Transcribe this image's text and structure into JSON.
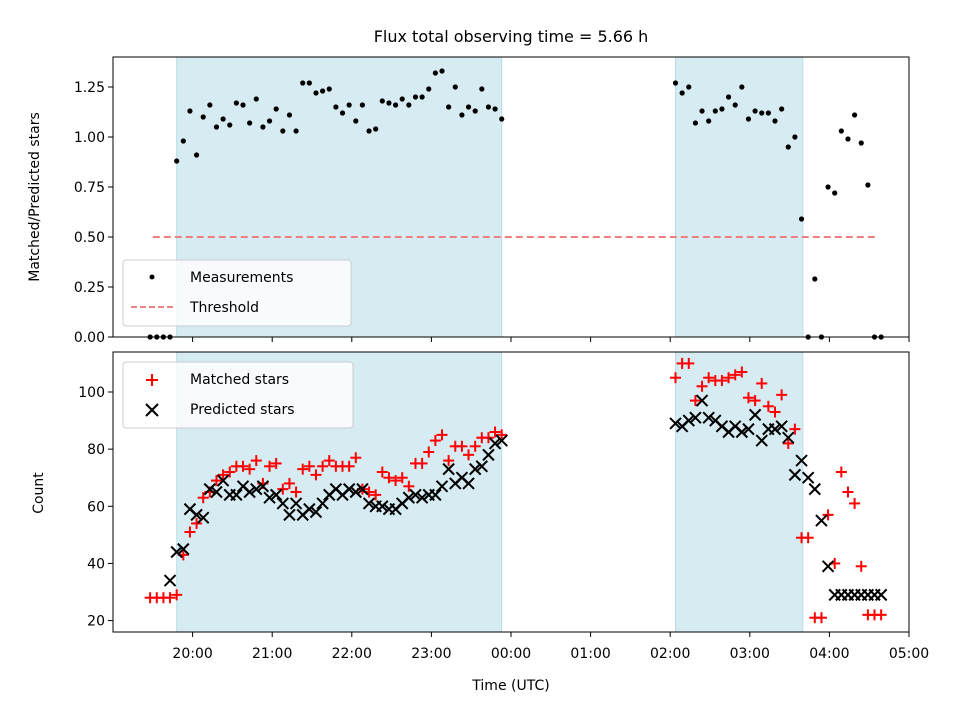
{
  "figure_title": "Flux total observing time = 5.66 h",
  "chart_data": [
    {
      "type": "scatter",
      "panel": "top",
      "title": "Flux total observing time = 5.66 h",
      "xlabel": "",
      "ylabel": "Matched/Predicted stars",
      "xlim": [
        "19:00",
        "05:00"
      ],
      "ylim": [
        0.0,
        1.4
      ],
      "yticks": [
        "0.00",
        "0.25",
        "0.50",
        "0.75",
        "1.00",
        "1.25"
      ],
      "yticks_values": [
        0,
        0.25,
        0.5,
        0.75,
        1.0,
        1.25
      ],
      "grid": false,
      "legend_position": "lower-left",
      "shaded_intervals": [
        [
          "19:48",
          "23:53"
        ],
        [
          "02:04",
          "03:40"
        ]
      ],
      "shade_color": "#add8e6",
      "series": [
        {
          "name": "Measurements",
          "marker": "dot",
          "color": "#000000",
          "x": [
            "19:28",
            "19:33",
            "19:38",
            "19:43",
            "19:48",
            "19:53",
            "19:58",
            "20:03",
            "20:08",
            "20:13",
            "20:18",
            "20:23",
            "20:28",
            "20:33",
            "20:38",
            "20:43",
            "20:48",
            "20:53",
            "20:58",
            "21:03",
            "21:08",
            "21:13",
            "21:18",
            "21:23",
            "21:28",
            "21:33",
            "21:38",
            "21:43",
            "21:48",
            "21:53",
            "21:58",
            "22:03",
            "22:08",
            "22:13",
            "22:18",
            "22:23",
            "22:28",
            "22:33",
            "22:38",
            "22:43",
            "22:48",
            "22:53",
            "22:58",
            "23:03",
            "23:08",
            "23:13",
            "23:18",
            "23:23",
            "23:28",
            "23:33",
            "23:38",
            "23:43",
            "23:48",
            "23:53",
            "02:04",
            "02:09",
            "02:14",
            "02:19",
            "02:24",
            "02:29",
            "02:34",
            "02:39",
            "02:44",
            "02:49",
            "02:54",
            "02:59",
            "03:04",
            "03:09",
            "03:14",
            "03:19",
            "03:24",
            "03:29",
            "03:34",
            "03:39",
            "03:44",
            "03:49",
            "03:54",
            "03:59",
            "04:04",
            "04:09",
            "04:14",
            "04:19",
            "04:24",
            "04:29",
            "04:34",
            "04:39"
          ],
          "y": [
            0.0,
            0.0,
            0.0,
            0.0,
            0.88,
            0.98,
            1.13,
            0.91,
            1.1,
            1.16,
            1.05,
            1.09,
            1.06,
            1.17,
            1.16,
            1.07,
            1.19,
            1.05,
            1.08,
            1.14,
            1.03,
            1.11,
            1.03,
            1.27,
            1.27,
            1.22,
            1.23,
            1.24,
            1.15,
            1.12,
            1.16,
            1.08,
            1.16,
            1.03,
            1.04,
            1.18,
            1.17,
            1.16,
            1.19,
            1.16,
            1.2,
            1.2,
            1.24,
            1.32,
            1.33,
            1.15,
            1.25,
            1.11,
            1.15,
            1.13,
            1.24,
            1.15,
            1.14,
            1.09,
            1.27,
            1.22,
            1.25,
            1.07,
            1.13,
            1.08,
            1.13,
            1.14,
            1.2,
            1.16,
            1.25,
            1.09,
            1.13,
            1.12,
            1.12,
            1.08,
            1.14,
            0.95,
            1.0,
            0.59,
            0.0,
            0.29,
            0.0,
            0.75,
            0.72,
            1.03,
            0.99,
            1.11,
            0.97,
            0.76,
            0.0,
            0.0
          ]
        },
        {
          "name": "Threshold",
          "style": "dashed",
          "color": "#f08080",
          "x": [
            "19:30",
            "04:35"
          ],
          "y": [
            0.5,
            0.5
          ]
        }
      ]
    },
    {
      "type": "scatter",
      "panel": "bottom",
      "xlabel": "Time (UTC)",
      "ylabel": "Count",
      "xlim": [
        "19:00",
        "05:00"
      ],
      "ylim": [
        16,
        114
      ],
      "xticks": [
        "20:00",
        "21:00",
        "22:00",
        "23:00",
        "00:00",
        "01:00",
        "02:00",
        "03:00",
        "04:00",
        "05:00"
      ],
      "yticks": [
        "20",
        "40",
        "60",
        "80",
        "100"
      ],
      "yticks_values": [
        20,
        40,
        60,
        80,
        100
      ],
      "grid": false,
      "legend_position": "upper-left",
      "shaded_intervals": [
        [
          "19:48",
          "23:53"
        ],
        [
          "02:04",
          "03:40"
        ]
      ],
      "shade_color": "#add8e6",
      "series": [
        {
          "name": "Matched stars",
          "marker": "plus",
          "color": "#ff0000",
          "x": [
            "19:28",
            "19:33",
            "19:38",
            "19:43",
            "19:48",
            "19:53",
            "19:58",
            "20:03",
            "20:08",
            "20:13",
            "20:18",
            "20:23",
            "20:28",
            "20:33",
            "20:38",
            "20:43",
            "20:48",
            "20:53",
            "20:58",
            "21:03",
            "21:08",
            "21:13",
            "21:18",
            "21:23",
            "21:28",
            "21:33",
            "21:38",
            "21:43",
            "21:48",
            "21:53",
            "21:58",
            "22:03",
            "22:08",
            "22:13",
            "22:18",
            "22:23",
            "22:28",
            "22:33",
            "22:38",
            "22:43",
            "22:48",
            "22:53",
            "22:58",
            "23:03",
            "23:08",
            "23:13",
            "23:18",
            "23:23",
            "23:28",
            "23:33",
            "23:38",
            "23:43",
            "23:48",
            "23:53",
            "02:04",
            "02:09",
            "02:14",
            "02:19",
            "02:24",
            "02:29",
            "02:34",
            "02:39",
            "02:44",
            "02:49",
            "02:54",
            "02:59",
            "03:04",
            "03:09",
            "03:14",
            "03:19",
            "03:24",
            "03:29",
            "03:34",
            "03:39",
            "03:44",
            "03:49",
            "03:54",
            "03:59",
            "04:04",
            "04:09",
            "04:14",
            "04:19",
            "04:24",
            "04:29",
            "04:34",
            "04:39"
          ],
          "y": [
            28,
            28,
            28,
            28,
            29,
            43,
            51,
            54,
            63,
            65,
            69,
            71,
            72,
            74,
            74,
            73,
            76,
            68,
            74,
            75,
            66,
            68,
            65,
            73,
            74,
            71,
            74,
            76,
            74,
            74,
            74,
            77,
            66,
            65,
            64,
            72,
            70,
            69,
            70,
            67,
            75,
            75,
            79,
            83,
            85,
            76,
            81,
            81,
            78,
            81,
            84,
            84,
            86,
            85,
            105,
            110,
            110,
            97,
            102,
            105,
            104,
            104,
            105,
            106,
            107,
            98,
            97,
            103,
            95,
            93,
            99,
            82,
            87,
            49,
            49,
            21,
            21,
            57,
            40,
            72,
            65,
            61,
            39,
            22,
            22,
            22
          ]
        },
        {
          "name": "Predicted stars",
          "marker": "x",
          "color": "#000000",
          "x": [
            "19:43",
            "19:48",
            "19:53",
            "19:58",
            "20:03",
            "20:08",
            "20:13",
            "20:18",
            "20:23",
            "20:28",
            "20:33",
            "20:38",
            "20:43",
            "20:48",
            "20:53",
            "20:58",
            "21:03",
            "21:08",
            "21:13",
            "21:18",
            "21:23",
            "21:28",
            "21:33",
            "21:38",
            "21:43",
            "21:48",
            "21:53",
            "21:58",
            "22:03",
            "22:08",
            "22:13",
            "22:18",
            "22:23",
            "22:28",
            "22:33",
            "22:38",
            "22:43",
            "22:48",
            "22:53",
            "22:58",
            "23:03",
            "23:08",
            "23:13",
            "23:18",
            "23:23",
            "23:28",
            "23:33",
            "23:38",
            "23:43",
            "23:48",
            "23:53",
            "02:04",
            "02:09",
            "02:14",
            "02:19",
            "02:24",
            "02:29",
            "02:34",
            "02:39",
            "02:44",
            "02:49",
            "02:54",
            "02:59",
            "03:04",
            "03:09",
            "03:14",
            "03:19",
            "03:24",
            "03:29",
            "03:34",
            "03:39",
            "03:44",
            "03:49",
            "03:54",
            "03:59",
            "04:04",
            "04:09",
            "04:14",
            "04:19",
            "04:24",
            "04:29",
            "04:34",
            "04:39"
          ],
          "y": [
            34,
            44,
            45,
            59,
            57,
            56,
            66,
            65,
            69,
            64,
            64,
            67,
            65,
            66,
            67,
            63,
            64,
            61,
            57,
            61,
            57,
            59,
            58,
            61,
            64,
            66,
            64,
            66,
            65,
            66,
            61,
            60,
            60,
            59,
            59,
            61,
            63,
            64,
            63,
            64,
            64,
            67,
            73,
            68,
            70,
            68,
            73,
            74,
            78,
            82,
            83,
            89,
            88,
            90,
            91,
            97,
            91,
            90,
            88,
            86,
            88,
            86,
            87,
            92,
            83,
            87,
            87,
            88,
            84,
            71,
            76,
            70,
            66,
            55,
            39,
            29,
            29,
            29,
            29,
            29,
            29,
            29,
            29
          ]
        }
      ]
    }
  ]
}
